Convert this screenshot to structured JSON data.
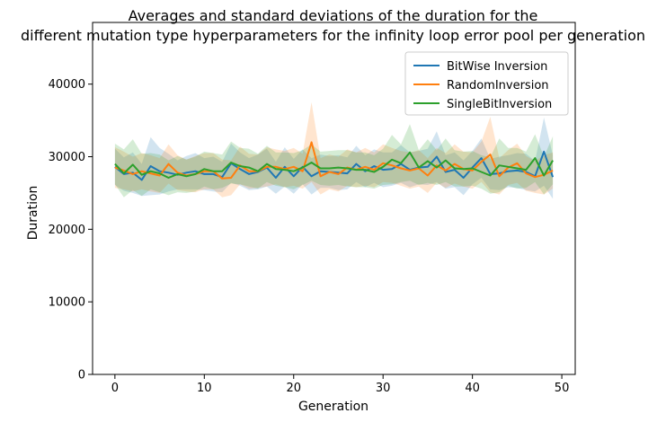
{
  "chart_data": {
    "type": "line",
    "title_line1": "Averages and standard deviations of the duration for the",
    "title_line2": "different mutation type hyperparameters for the infinity loop error pool per generation",
    "xlabel": "Generation",
    "ylabel": "Duration",
    "xlim": [
      -2.5,
      51.5
    ],
    "ylim": [
      0,
      48500
    ],
    "x_ticks": [
      0,
      10,
      20,
      30,
      40,
      50
    ],
    "y_ticks": [
      0,
      10000,
      20000,
      30000,
      40000
    ],
    "grid": false,
    "legend_position": "top-right",
    "x": [
      0,
      1,
      2,
      3,
      4,
      5,
      6,
      7,
      8,
      9,
      10,
      11,
      12,
      13,
      14,
      15,
      16,
      17,
      18,
      19,
      20,
      21,
      22,
      23,
      24,
      25,
      26,
      27,
      28,
      29,
      30,
      31,
      32,
      33,
      34,
      35,
      36,
      37,
      38,
      39,
      40,
      41,
      42,
      43,
      44,
      45,
      46,
      47,
      48,
      49
    ],
    "series": [
      {
        "name": "BitWise Inversion",
        "color": "#1f77b4",
        "mean": [
          28600,
          27600,
          27800,
          26800,
          28700,
          28000,
          27800,
          27500,
          27800,
          28000,
          27600,
          27600,
          27200,
          29100,
          28300,
          27600,
          27900,
          28500,
          27100,
          28600,
          27300,
          28600,
          27300,
          28000,
          27900,
          27800,
          27700,
          29000,
          28000,
          28700,
          28200,
          28300,
          29000,
          28200,
          28500,
          28600,
          30000,
          27900,
          28200,
          27100,
          28500,
          29800,
          27600,
          27700,
          28000,
          28100,
          27900,
          27300,
          30700,
          27200
        ],
        "std": [
          2500,
          2300,
          2800,
          2200,
          4000,
          3200,
          2600,
          2000,
          2300,
          2500,
          2200,
          2400,
          2100,
          2700,
          2300,
          2200,
          2400,
          2600,
          2200,
          2700,
          2400,
          2400,
          2500,
          2300,
          2200,
          2400,
          2200,
          2500,
          2200,
          2300,
          2400,
          2300,
          2600,
          2400,
          2300,
          2500,
          3500,
          2300,
          2400,
          2400,
          2300,
          2700,
          2100,
          2300,
          2200,
          2400,
          2500,
          2100,
          4700,
          3000
        ]
      },
      {
        "name": "RandomInversion",
        "color": "#ff7f0e",
        "mean": [
          28500,
          28100,
          27600,
          28000,
          27700,
          27400,
          29000,
          27800,
          27400,
          27600,
          28000,
          28000,
          27000,
          27100,
          28800,
          28000,
          28000,
          28600,
          28600,
          28300,
          28600,
          28000,
          32000,
          27300,
          27900,
          27600,
          28500,
          28200,
          28600,
          28200,
          29100,
          28800,
          28400,
          28100,
          28400,
          27400,
          28800,
          28100,
          29000,
          28300,
          28100,
          29300,
          30300,
          27300,
          28500,
          29100,
          27700,
          27200,
          27500,
          28100
        ],
        "std": [
          2800,
          2600,
          2400,
          2500,
          2500,
          2400,
          2700,
          2400,
          2200,
          2500,
          2500,
          2500,
          2600,
          2400,
          2600,
          2400,
          2300,
          2700,
          2400,
          2500,
          2600,
          2400,
          5500,
          2500,
          2400,
          2400,
          2500,
          2400,
          2600,
          2400,
          2600,
          2400,
          2400,
          2500,
          2500,
          2400,
          2400,
          2400,
          2700,
          2400,
          2500,
          2800,
          5200,
          2500,
          2400,
          2700,
          2400,
          2200,
          2700,
          2500
        ]
      },
      {
        "name": "SingleBitInversion",
        "color": "#2ca02c",
        "mean": [
          29000,
          27700,
          28900,
          27500,
          28000,
          27700,
          27100,
          27600,
          27300,
          27600,
          28300,
          28000,
          28000,
          29200,
          28700,
          28500,
          28000,
          29000,
          28300,
          28200,
          28000,
          28500,
          29200,
          28400,
          28400,
          28500,
          28400,
          28200,
          28200,
          27900,
          28600,
          29600,
          29100,
          30600,
          28500,
          29400,
          28500,
          29500,
          28400,
          28300,
          28400,
          27900,
          27400,
          28800,
          28600,
          28400,
          28200,
          29800,
          27400,
          29500
        ],
        "std": [
          2800,
          3300,
          3500,
          2900,
          2500,
          2600,
          2400,
          2500,
          2300,
          2400,
          2400,
          2500,
          2300,
          2900,
          2500,
          2600,
          2400,
          2500,
          2300,
          2400,
          2500,
          2400,
          2500,
          2300,
          2400,
          2400,
          2500,
          2400,
          2400,
          2300,
          2500,
          3400,
          2600,
          3900,
          2400,
          3000,
          2400,
          3000,
          2500,
          2400,
          2400,
          2300,
          2500,
          3700,
          2600,
          2800,
          2500,
          3300,
          2600,
          3300
        ]
      }
    ]
  }
}
